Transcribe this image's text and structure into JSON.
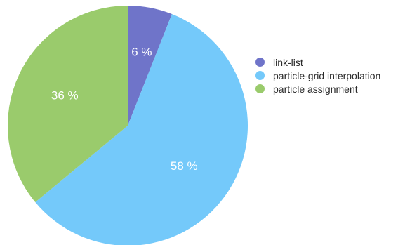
{
  "chart_data": {
    "type": "pie",
    "categories": [
      "link-list",
      "particle-grid interpolation",
      "particle assignment"
    ],
    "values": [
      6,
      58,
      36
    ],
    "data_labels": [
      "6 %",
      "58 %",
      "36 %"
    ],
    "colors": [
      "#6f74c9",
      "#74c9fa",
      "#9acb6c"
    ],
    "legend_position": "right",
    "start": "top",
    "direction": "clockwise"
  }
}
